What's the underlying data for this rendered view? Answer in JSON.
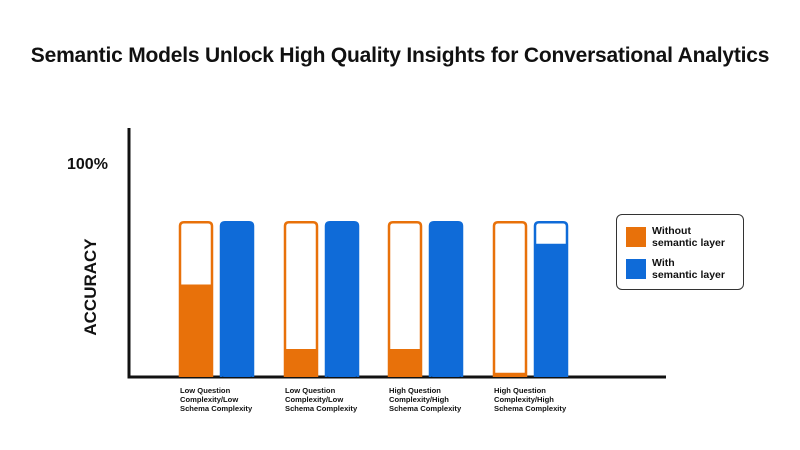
{
  "chart_data": {
    "type": "bar",
    "title": "Semantic Models Unlock High Quality Insights for Conversational Analytics",
    "ylabel": "ACCURACY",
    "y_tick_label": "100%",
    "ylim": [
      0,
      100
    ],
    "categories": [
      "Low Question\nComplexity/Low\nSchema Complexity",
      "Low Question\nComplexity/Low\nSchema Complexity",
      "High Question\nComplexity/High\nSchema Complexity",
      "High Question\nComplexity/High\nSchema Complexity"
    ],
    "bar_max": 72,
    "series": [
      {
        "name": "Without\nsemantic layer",
        "color": "#E8710A",
        "values": [
          43,
          13,
          13,
          2
        ]
      },
      {
        "name": "With\nsemantic layer",
        "color": "#0F6BD8",
        "values": [
          72,
          72,
          72,
          62
        ]
      }
    ],
    "legend_position": "right",
    "grid": false
  }
}
